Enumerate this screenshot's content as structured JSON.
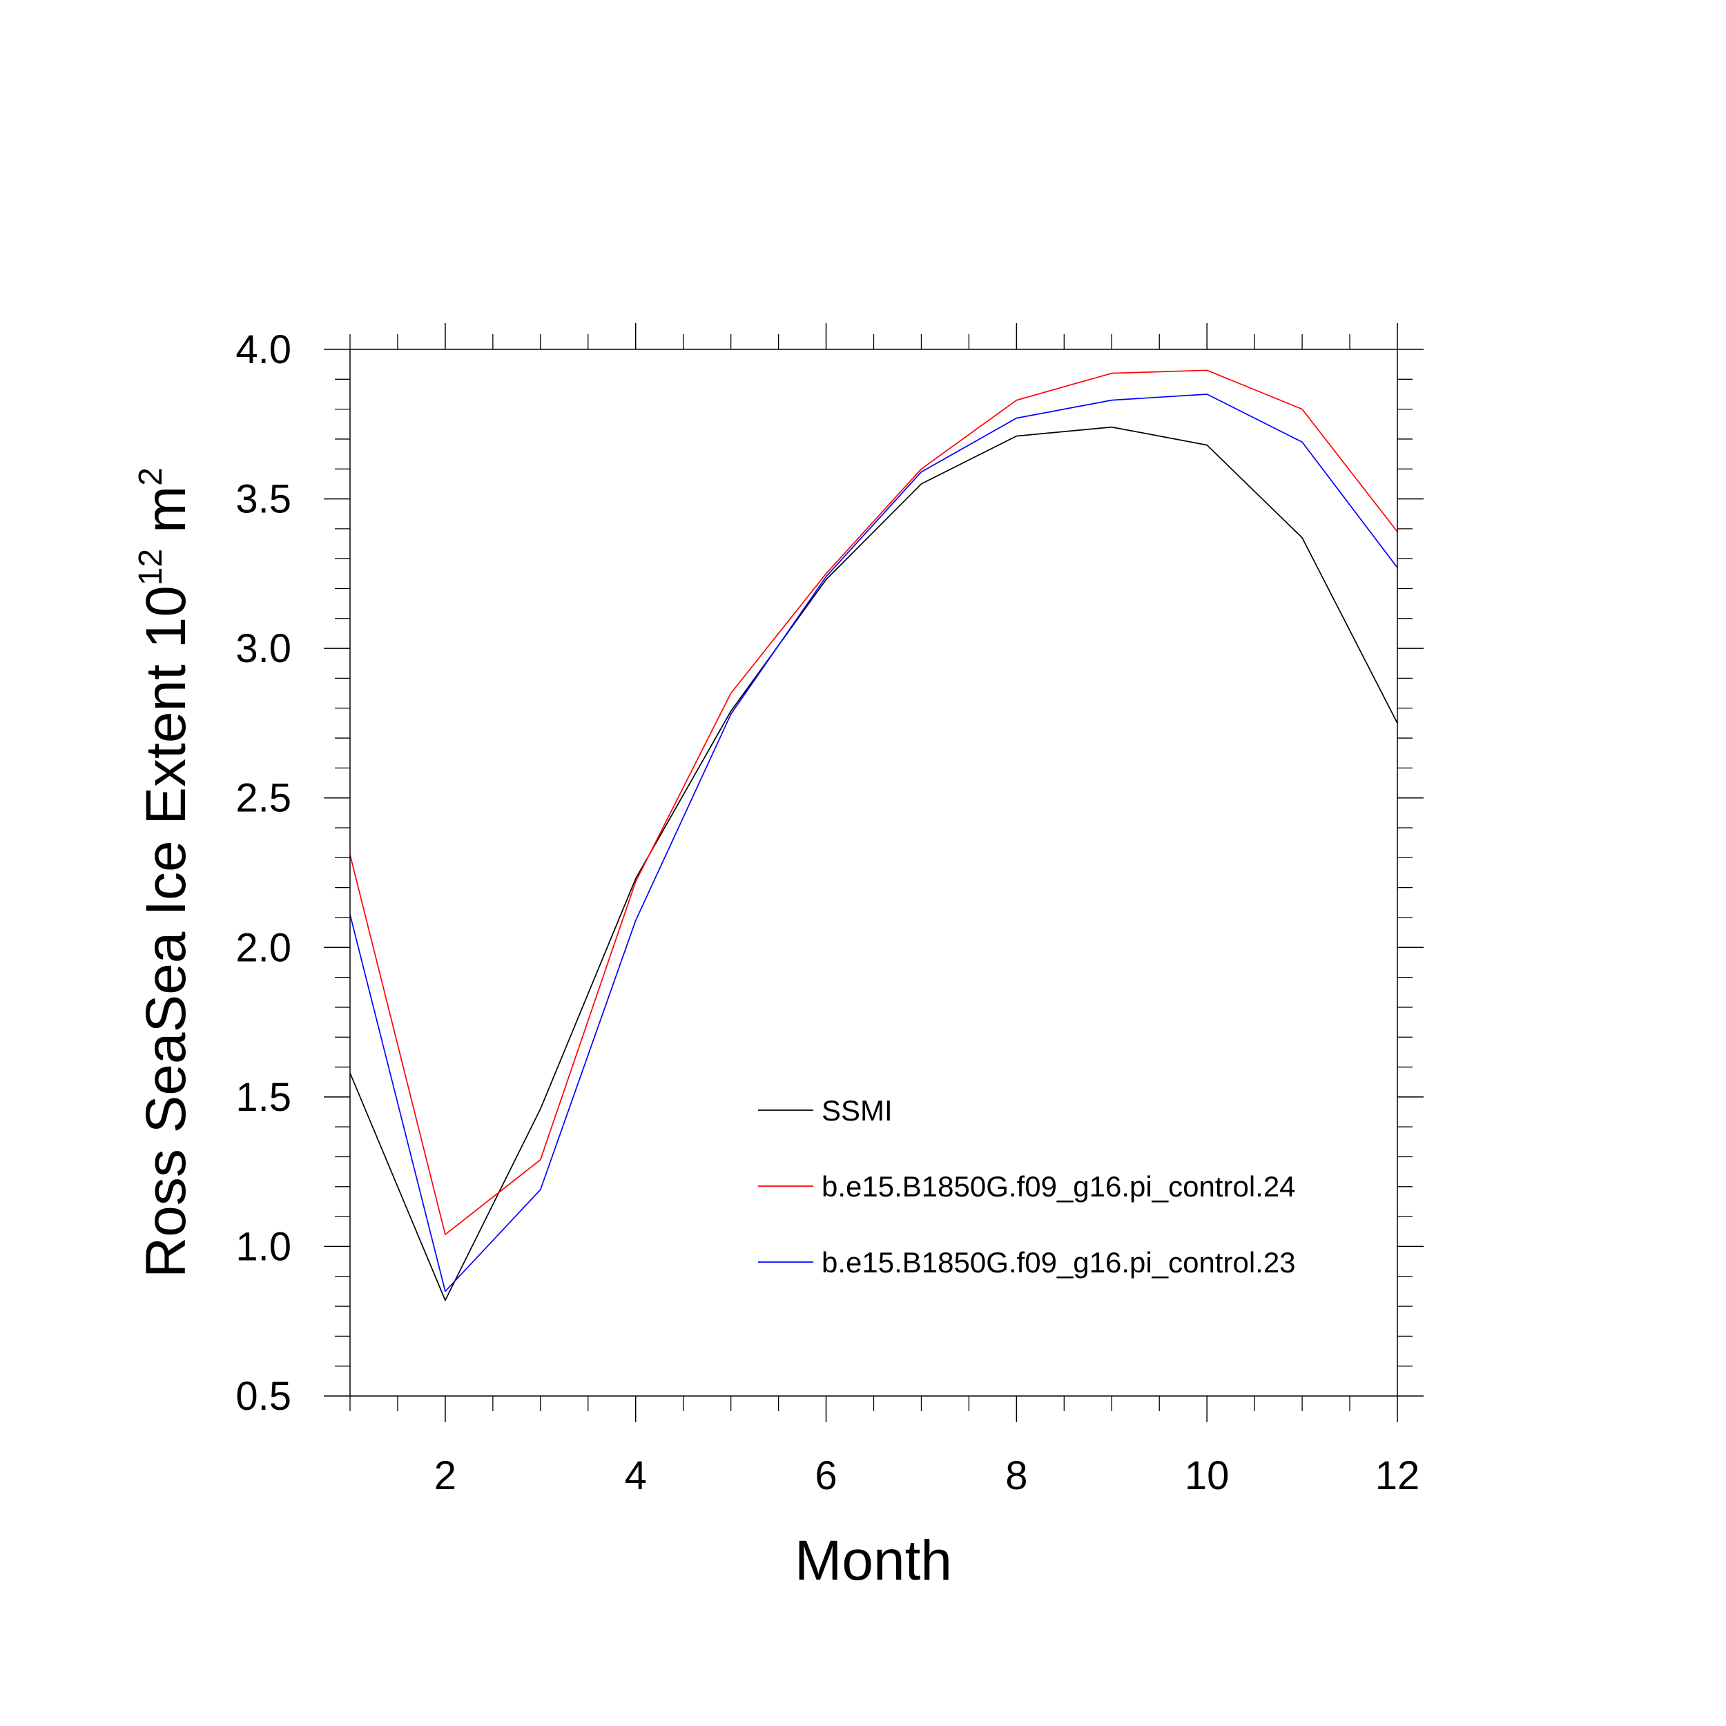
{
  "chart_data": {
    "type": "line",
    "xlabel": "Month",
    "ylabel_main": "Ross SeaSea Ice Extent 10",
    "ylabel_sup1": "12",
    "ylabel_unit": " m",
    "ylabel_sup2": "2",
    "xlim": [
      1,
      12
    ],
    "ylim": [
      0.5,
      4.0
    ],
    "x_ticks": [
      2,
      4,
      6,
      8,
      10,
      12
    ],
    "x_tick_labels": [
      "2",
      "4",
      "6",
      "8",
      "10",
      "12"
    ],
    "y_ticks": [
      0.5,
      1.0,
      1.5,
      2.0,
      2.5,
      3.0,
      3.5,
      4.0
    ],
    "y_tick_labels": [
      "0.5",
      "1.0",
      "1.5",
      "2.0",
      "2.5",
      "3.0",
      "3.5",
      "4.0"
    ],
    "legend_position": "lower-right",
    "x": [
      1,
      2,
      3,
      4,
      5,
      6,
      7,
      8,
      9,
      10,
      11,
      12
    ],
    "series": [
      {
        "name": "SSMI",
        "color": "#000000",
        "values": [
          1.58,
          0.82,
          1.46,
          2.23,
          2.79,
          3.23,
          3.55,
          3.71,
          3.74,
          3.68,
          3.37,
          2.75
        ]
      },
      {
        "name": "b.e15.B1850G.f09_g16.pi_control.24",
        "color": "#ff0000",
        "values": [
          2.31,
          1.04,
          1.29,
          2.22,
          2.85,
          3.25,
          3.6,
          3.83,
          3.92,
          3.93,
          3.8,
          3.39
        ]
      },
      {
        "name": "b.e15.B1850G.f09_g16.pi_control.23",
        "color": "#0000ff",
        "values": [
          2.11,
          0.85,
          1.19,
          2.09,
          2.78,
          3.24,
          3.59,
          3.77,
          3.83,
          3.85,
          3.69,
          3.27
        ]
      }
    ]
  }
}
